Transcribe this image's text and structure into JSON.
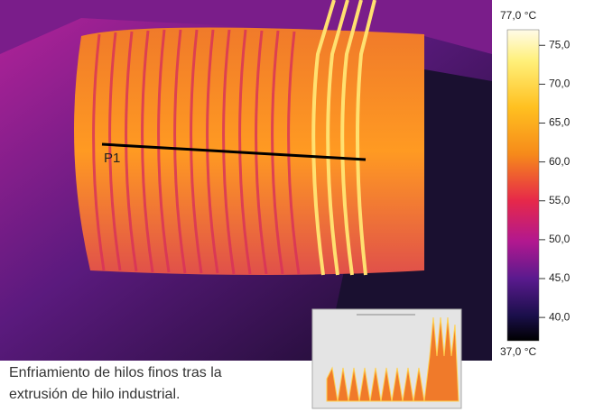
{
  "marker": "P1",
  "caption": [
    "Enfriamiento de hilos finos tras la",
    "extrusión de hilo industrial."
  ],
  "scale": {
    "max": {
      "value": 77,
      "label": "77,0 °C"
    },
    "min": {
      "value": 37,
      "label": "37,0 °C"
    },
    "ticks": [
      {
        "value": 75,
        "label": "75,0"
      },
      {
        "value": 70,
        "label": "70,0"
      },
      {
        "value": 65,
        "label": "65,0"
      },
      {
        "value": 60,
        "label": "60,0"
      },
      {
        "value": 55,
        "label": "55,0"
      },
      {
        "value": 50,
        "label": "50,0"
      },
      {
        "value": 45,
        "label": "45,0"
      },
      {
        "value": 40,
        "label": "40,0"
      }
    ]
  }
}
